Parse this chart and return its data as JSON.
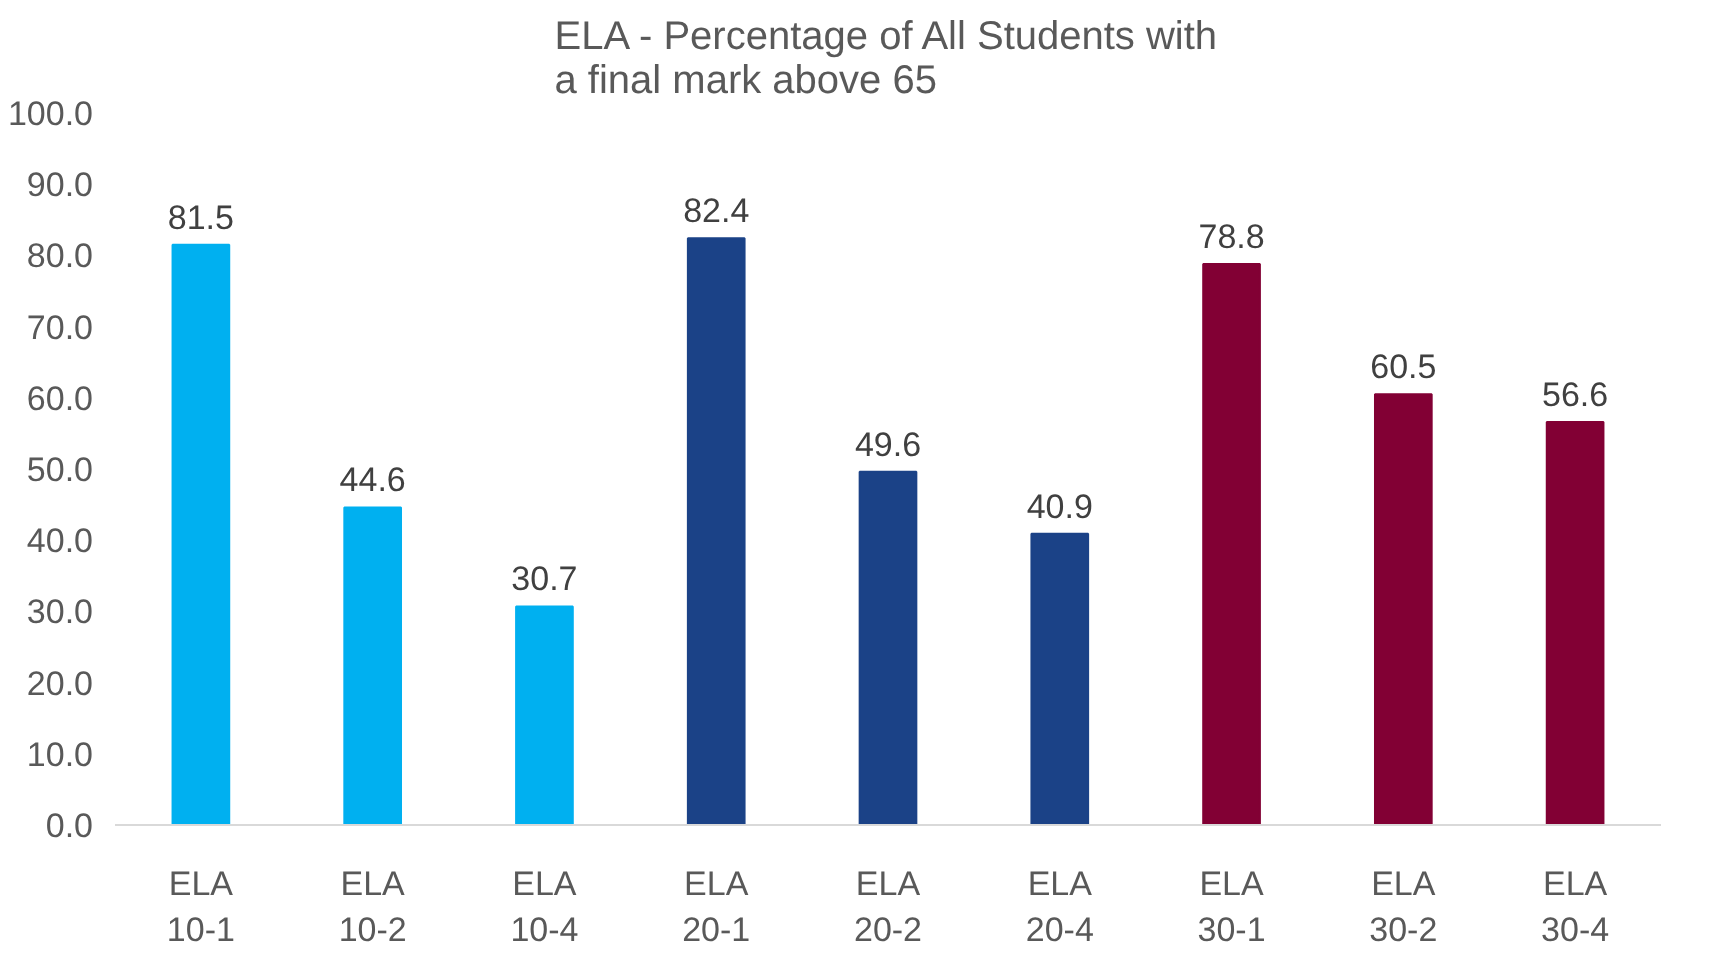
{
  "chart_data": {
    "type": "bar",
    "title": "ELA - Percentage of All Students with\na final mark above 65",
    "categories": [
      "ELA\n10-1",
      "ELA\n10-2",
      "ELA\n10-4",
      "ELA\n20-1",
      "ELA\n20-2",
      "ELA\n20-4",
      "ELA\n30-1",
      "ELA\n30-2",
      "ELA\n30-4"
    ],
    "values": [
      81.5,
      44.6,
      30.7,
      82.4,
      49.6,
      40.9,
      78.8,
      60.5,
      56.6
    ],
    "colors": [
      "#00b0f0",
      "#00b0f0",
      "#00b0f0",
      "#1b4287",
      "#1b4287",
      "#1b4287",
      "#820034",
      "#820034",
      "#820034"
    ],
    "ylim": [
      0,
      100
    ],
    "yticks": [
      {
        "value": 0,
        "label": "0.0"
      },
      {
        "value": 10,
        "label": "10.0"
      },
      {
        "value": 20,
        "label": "20.0"
      },
      {
        "value": 30,
        "label": "30.0"
      },
      {
        "value": 40,
        "label": "40.0"
      },
      {
        "value": 50,
        "label": "50.0"
      },
      {
        "value": 60,
        "label": "60.0"
      },
      {
        "value": 70,
        "label": "70.0"
      },
      {
        "value": 80,
        "label": "80.0"
      },
      {
        "value": 90,
        "label": "90.0"
      },
      {
        "value": 100,
        "label": "100.0"
      }
    ],
    "data_labels": true,
    "grid": false
  }
}
